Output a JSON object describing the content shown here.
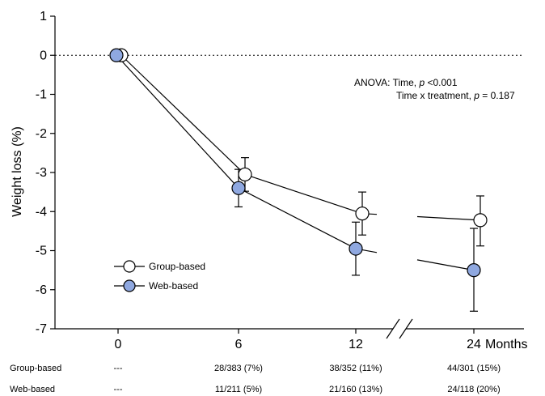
{
  "chart_data": {
    "type": "line",
    "title": "",
    "ylabel": "Weight loss (%)",
    "xlabel": "Months",
    "ylim": [
      -7,
      1
    ],
    "yticks": [
      1,
      0,
      -1,
      -2,
      -3,
      -4,
      -5,
      -6,
      -7
    ],
    "x": [
      0,
      6,
      12,
      24
    ],
    "xtick_labels": [
      "0",
      "6",
      "12",
      "24"
    ],
    "axis_break": "between 12 and 24",
    "reference_line_y": 0,
    "grid": false,
    "legend_position": "bottom-left",
    "series": [
      {
        "name": "Group-based",
        "marker": "open-circle",
        "color": "#ffffff",
        "values": [
          0,
          -3.05,
          -4.05,
          -4.22
        ],
        "error_low": [
          null,
          -3.48,
          -4.6,
          -4.88
        ],
        "error_high": [
          null,
          -2.62,
          -3.5,
          -3.6
        ]
      },
      {
        "name": "Web-based",
        "marker": "filled-circle",
        "color": "#8fa8e0",
        "values": [
          0,
          -3.4,
          -4.95,
          -5.5
        ],
        "error_low": [
          null,
          -3.88,
          -5.63,
          -6.55
        ],
        "error_high": [
          null,
          -2.92,
          -4.27,
          -4.43
        ]
      }
    ],
    "annotation": {
      "line1_prefix": "ANOVA: Time, ",
      "line1_p": "p",
      "line1_suffix": " <0.001",
      "line2_prefix": "Time x treatment, ",
      "line2_p": "p",
      "line2_suffix": " = 0.187"
    },
    "table": {
      "rows": [
        {
          "label": "Group-based",
          "cells": [
            "---",
            "28/383 (7%)",
            "38/352 (11%)",
            "44/301 (15%)"
          ]
        },
        {
          "label": "Web-based",
          "cells": [
            "---",
            "11/211 (5%)",
            "21/160 (13%)",
            "24/118 (20%)"
          ]
        }
      ]
    }
  }
}
